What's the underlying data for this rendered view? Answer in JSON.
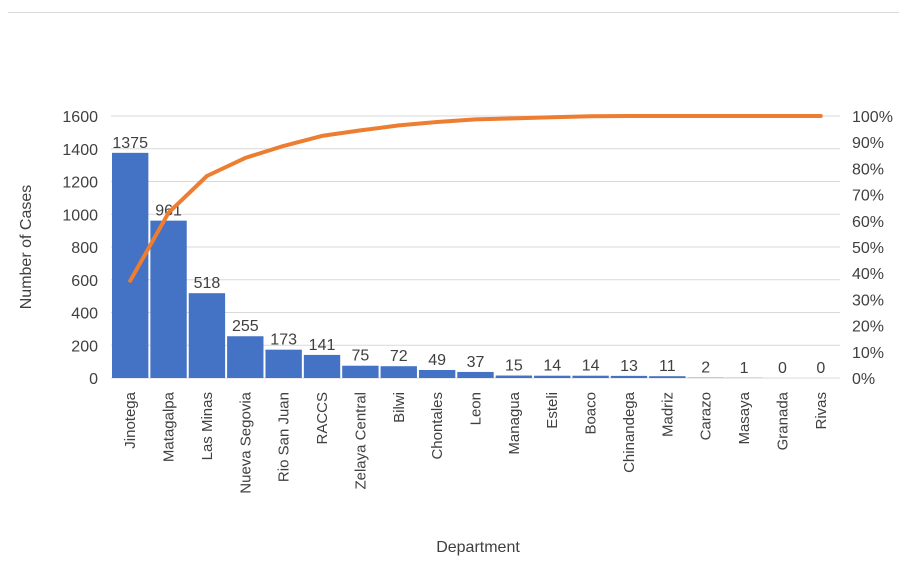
{
  "chart_data": {
    "type": "bar",
    "title": "",
    "xlabel": "Department",
    "ylabel": "Number of Cases",
    "ylim": [
      0,
      1600
    ],
    "y_ticks": [
      "0",
      "200",
      "400",
      "600",
      "800",
      "1000",
      "1200",
      "1400",
      "1600"
    ],
    "y2lim": [
      0,
      100
    ],
    "y2_ticks": [
      "0%",
      "10%",
      "20%",
      "30%",
      "40%",
      "50%",
      "60%",
      "70%",
      "80%",
      "90%",
      "100%"
    ],
    "grid": true,
    "legend": "none",
    "categories": [
      "Jinotega",
      "Matagalpa",
      "Las Minas",
      "Nueva Segovia",
      "Rio San Juan",
      "RACCS",
      "Zelaya Central",
      "Bilwi",
      "Chontales",
      "Leon",
      "Managua",
      "Esteli",
      "Boaco",
      "Chinandega",
      "Madriz",
      "Carazo",
      "Masaya",
      "Granada",
      "Rivas"
    ],
    "series": [
      {
        "type": "bar",
        "axis": "left",
        "color": "#4472c4",
        "values": [
          1375,
          961,
          518,
          255,
          173,
          141,
          75,
          72,
          49,
          37,
          15,
          14,
          14,
          13,
          11,
          2,
          1,
          0,
          0
        ],
        "labels": [
          "1375",
          "961",
          "518",
          "255",
          "173",
          "141",
          "75",
          "72",
          "49",
          "37",
          "15",
          "14",
          "14",
          "13",
          "11",
          "2",
          "1",
          "0",
          "0"
        ]
      },
      {
        "type": "line",
        "axis": "right",
        "color": "#ed7d31",
        "values": [
          37.1,
          63.1,
          77.1,
          84.0,
          88.6,
          92.4,
          94.5,
          96.4,
          97.7,
          98.7,
          99.1,
          99.5,
          99.9,
          100,
          100,
          100,
          100,
          100,
          100
        ]
      }
    ]
  }
}
